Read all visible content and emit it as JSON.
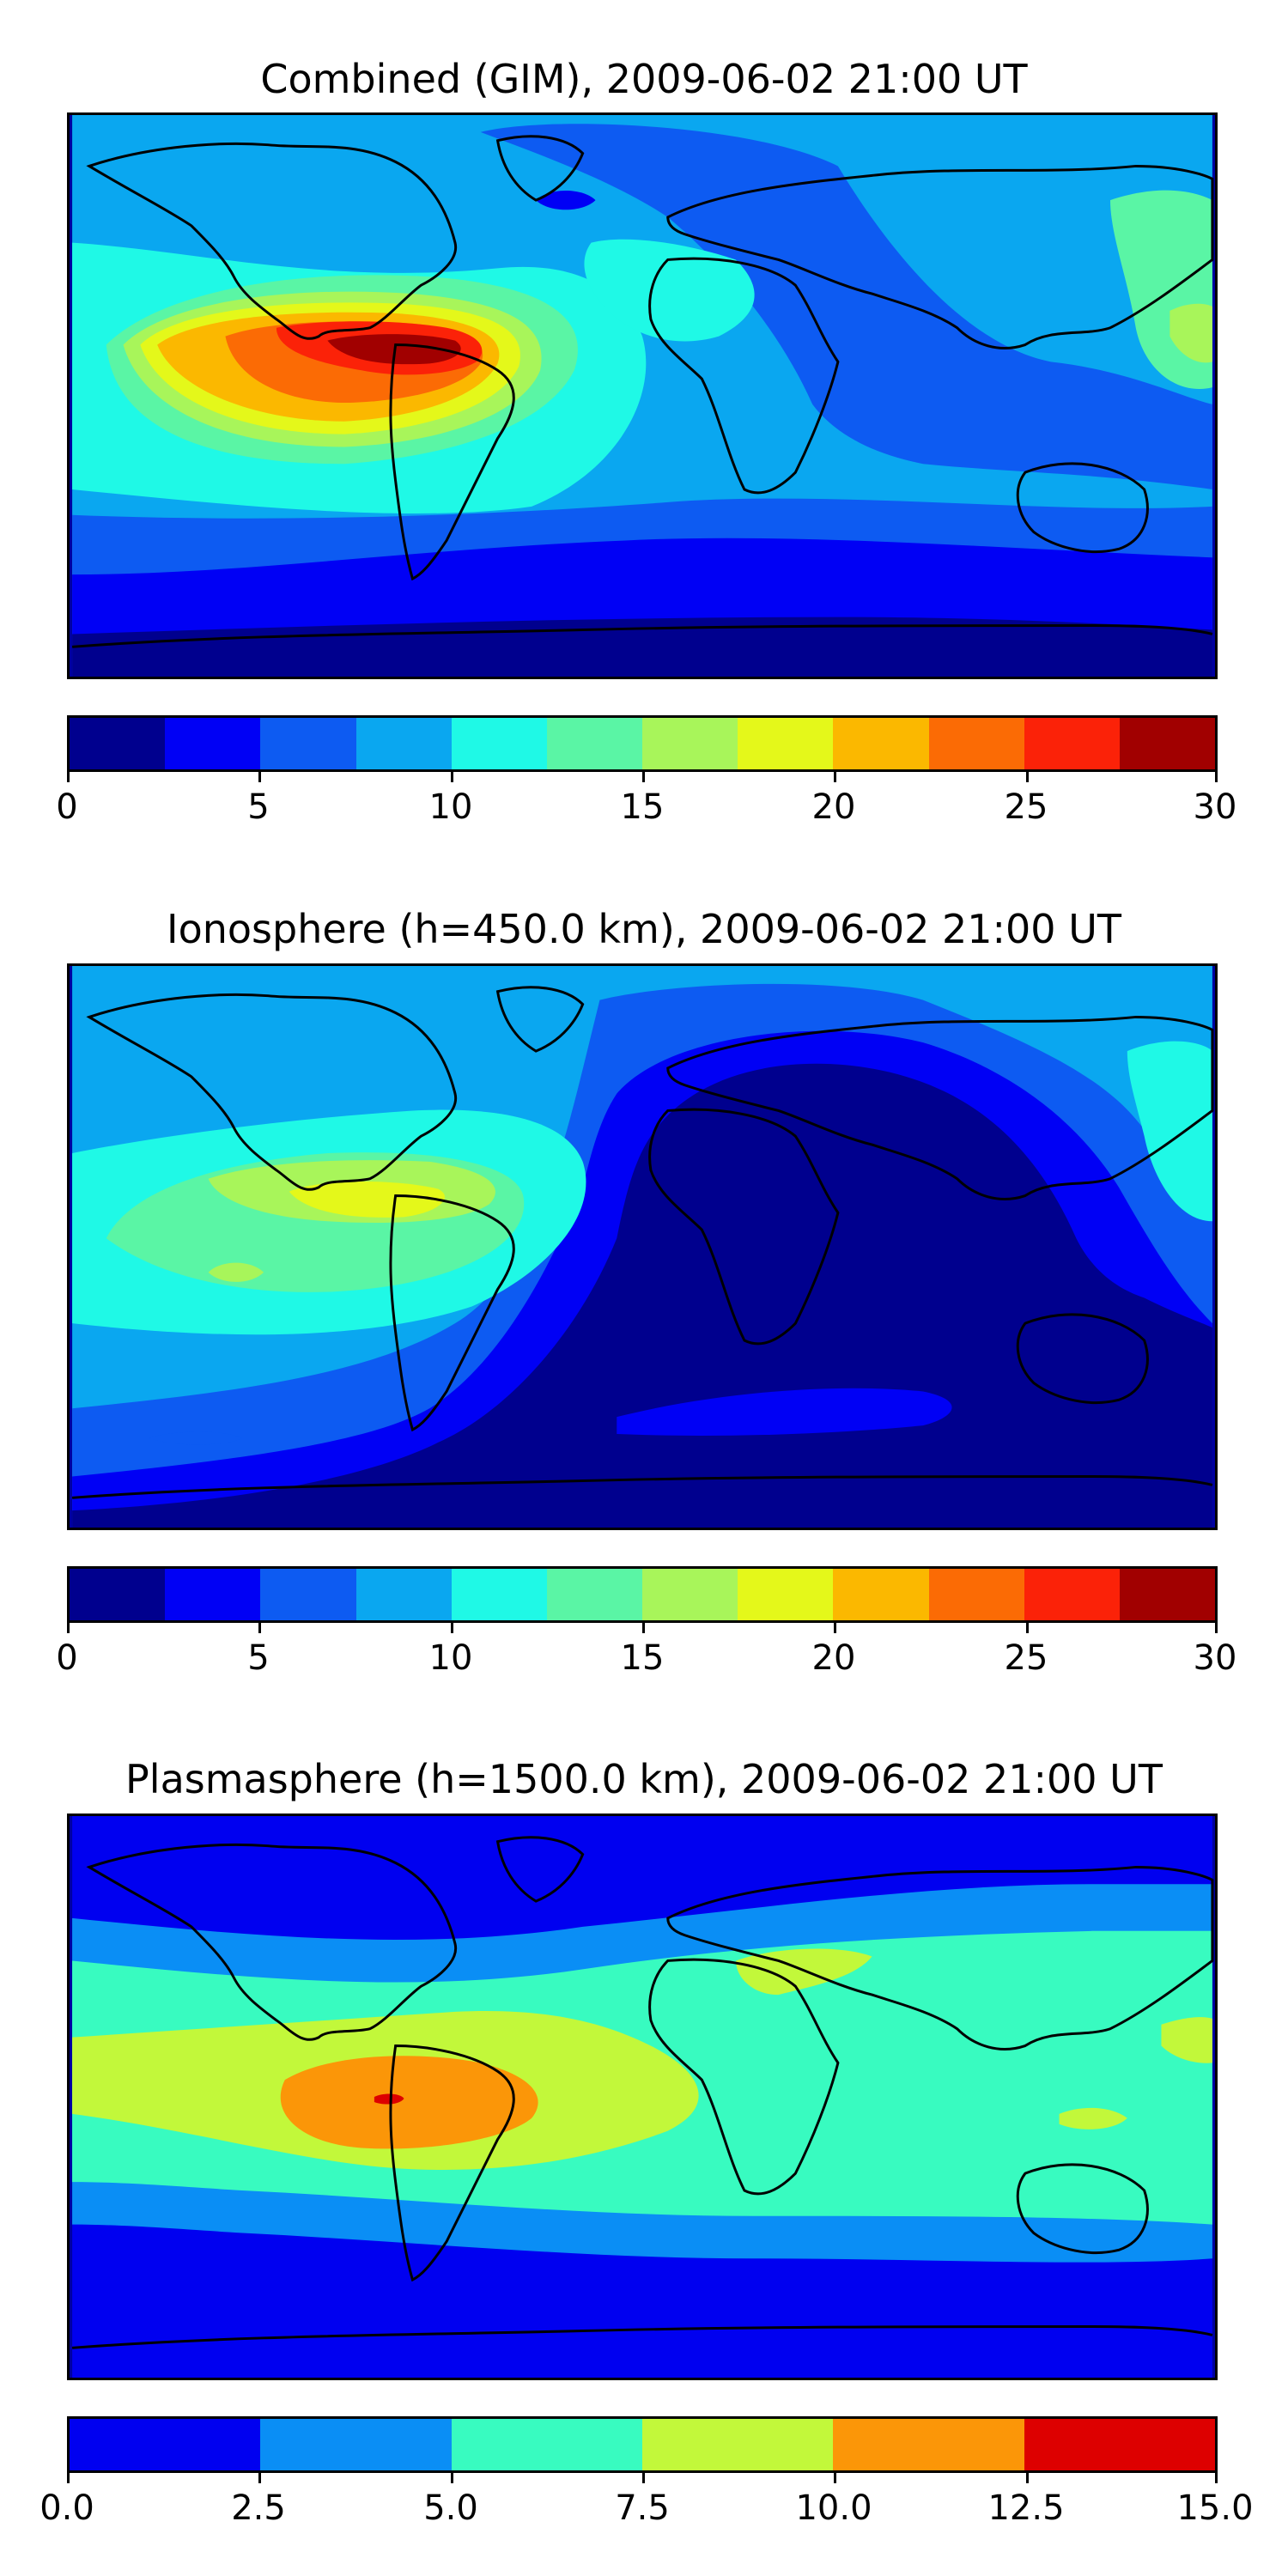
{
  "chart_data": [
    {
      "type": "heatmap",
      "title": "Combined (GIM), 2009-06-02 21:00 UT",
      "colorbar": {
        "levels": [
          0,
          2.5,
          5,
          7.5,
          10,
          12.5,
          15,
          17.5,
          20,
          22.5,
          25,
          27.5,
          30
        ],
        "colors": [
          "#00008e",
          "#0000f5",
          "#0d5bf2",
          "#0aa7f0",
          "#1ff9e6",
          "#5af5a5",
          "#a8f55a",
          "#e4f81a",
          "#fbb800",
          "#fb6b05",
          "#fb2208",
          "#a10000"
        ],
        "ticks": [
          0,
          5,
          10,
          15,
          20,
          25,
          30
        ],
        "tick_labels": [
          "0",
          "5",
          "10",
          "15",
          "20",
          "25",
          "30"
        ]
      },
      "features": {
        "max_region": "Central America / northern South America",
        "max_value_approx": 28.5
      }
    },
    {
      "type": "heatmap",
      "title": "Ionosphere  (h=450.0 km), 2009-06-02 21:00 UT",
      "colorbar": {
        "levels": [
          0,
          2.5,
          5,
          7.5,
          10,
          12.5,
          15,
          17.5,
          20,
          22.5,
          25,
          27.5,
          30
        ],
        "colors": [
          "#00008e",
          "#0000f5",
          "#0d5bf2",
          "#0aa7f0",
          "#1ff9e6",
          "#5af5a5",
          "#a8f55a",
          "#e4f81a",
          "#fbb800",
          "#fb6b05",
          "#fb2208",
          "#a10000"
        ],
        "ticks": [
          0,
          5,
          10,
          15,
          20,
          25,
          30
        ],
        "tick_labels": [
          "0",
          "5",
          "10",
          "15",
          "20",
          "25",
          "30"
        ]
      },
      "features": {
        "max_region": "Caribbean",
        "max_value_approx": 19
      }
    },
    {
      "type": "heatmap",
      "title": "Plasmasphere (h=1500.0 km), 2009-06-02 21:00 UT",
      "colorbar": {
        "levels": [
          0,
          2.5,
          5,
          7.5,
          10,
          12.5,
          15
        ],
        "colors": [
          "#0000f0",
          "#0a8ef5",
          "#38fbc0",
          "#c2f83a",
          "#fb9608",
          "#dd0000"
        ],
        "ticks": [
          0,
          2.5,
          5,
          7.5,
          10,
          12.5,
          15
        ],
        "tick_labels": [
          "0.0",
          "2.5",
          "5.0",
          "7.5",
          "10.0",
          "12.5",
          "15.0"
        ]
      },
      "features": {
        "max_region": "South America",
        "max_value_approx": 13
      }
    }
  ]
}
